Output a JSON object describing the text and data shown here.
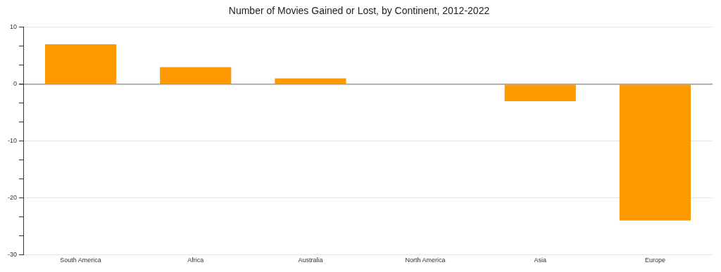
{
  "chart_data": {
    "type": "bar",
    "title": "Number of Movies Gained or Lost, by Continent, 2012-2022",
    "categories": [
      "South America",
      "Africa",
      "Australia",
      "North America",
      "Asia",
      "Europe"
    ],
    "values": [
      7,
      3,
      1,
      0,
      -3,
      -24
    ],
    "color": "#ff9900",
    "ylim": [
      -30,
      10
    ],
    "yticks": [
      -30,
      {
        "value": -26.67,
        "label": null
      },
      {
        "value": -23.33,
        "label": null
      },
      -20,
      {
        "value": -16.67,
        "label": null
      },
      {
        "value": -13.33,
        "label": null
      },
      -10,
      {
        "value": -6.67,
        "label": null
      },
      {
        "value": -3.33,
        "label": null
      },
      0,
      {
        "value": 3.33,
        "label": null
      },
      {
        "value": 6.67,
        "label": null
      },
      10
    ],
    "grid": "y",
    "legend": false
  }
}
